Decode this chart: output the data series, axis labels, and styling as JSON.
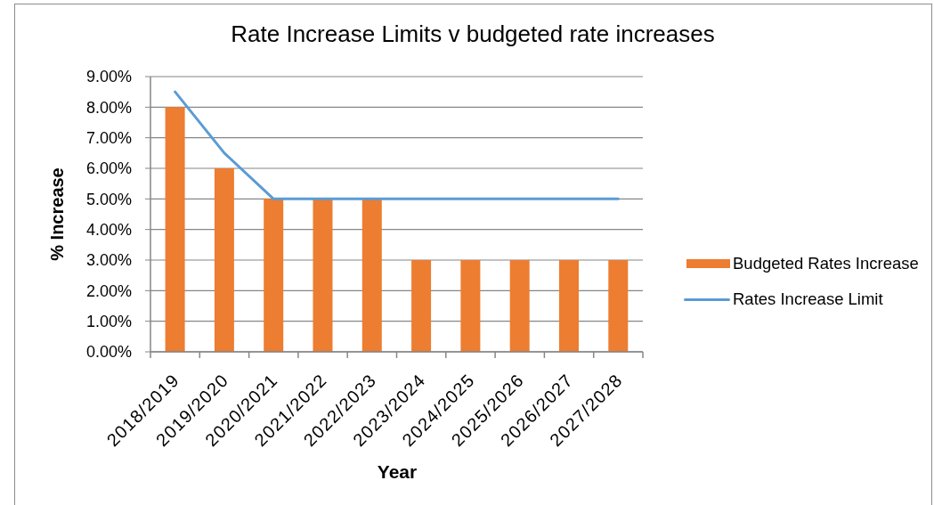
{
  "chart_data": {
    "type": "bar",
    "title": "Rate Increase Limits v budgeted rate increases",
    "xlabel": "Year",
    "ylabel": "% Increase",
    "categories": [
      "2018/2019",
      "2019/2020",
      "2020/2021",
      "2021/2022",
      "2022/2023",
      "2023/2024",
      "2024/2025",
      "2025/2026",
      "2026/2027",
      "2027/2028"
    ],
    "series": [
      {
        "name": "Budgeted Rates Increase",
        "color": "#ed7d31",
        "values": [
          8,
          6,
          5,
          5,
          5,
          3,
          3,
          3,
          3,
          3
        ]
      },
      {
        "name": "Rates Increase Limit",
        "type": "line",
        "color": "#5b9bd5",
        "values": [
          8.5,
          6.5,
          5,
          5,
          5,
          5,
          5,
          5,
          5,
          5
        ]
      }
    ],
    "ylim": [
      0,
      9
    ],
    "yticks": [
      {
        "value": 0,
        "label": "0.00%"
      },
      {
        "value": 1,
        "label": "1.00%"
      },
      {
        "value": 2,
        "label": "2.00%"
      },
      {
        "value": 3,
        "label": "3.00%"
      },
      {
        "value": 4,
        "label": "4.00%"
      },
      {
        "value": 5,
        "label": "5.00%"
      },
      {
        "value": 6,
        "label": "6.00%"
      },
      {
        "value": 7,
        "label": "7.00%"
      },
      {
        "value": 8,
        "label": "8.00%"
      },
      {
        "value": 9,
        "label": "9.00%"
      }
    ],
    "grid": "y",
    "legend": "right"
  }
}
